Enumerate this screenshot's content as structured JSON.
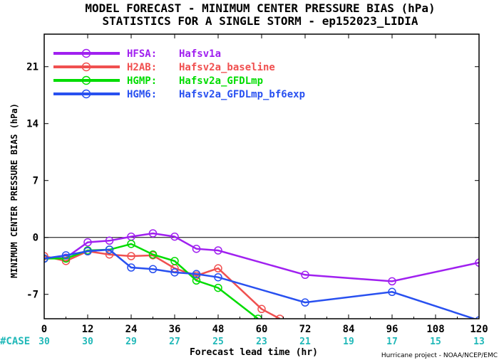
{
  "chart_data": {
    "type": "line",
    "title": "MODEL FORECAST - MINIMUM CENTER PRESSURE BIAS (hPa)",
    "subtitle": "STATISTICS FOR A SINGLE STORM - ep152023_LIDIA",
    "xlabel": "Forecast lead time (hr)",
    "ylabel": "MINIMUM CENTER PRESSURE BIAS (hPa)",
    "xlim": [
      0,
      120
    ],
    "ylim": [
      -10,
      25
    ],
    "xticks": [
      "0",
      "12",
      "24",
      "36",
      "48",
      "60",
      "72",
      "84",
      "96",
      "108",
      "120"
    ],
    "yticks": [
      "-7",
      "0",
      "7",
      "14",
      "21"
    ],
    "legend_position": "top-left",
    "case_label": "#CASE",
    "cases": [
      "30",
      "30",
      "29",
      "27",
      "25",
      "23",
      "21",
      "19",
      "17",
      "15",
      "13"
    ],
    "credit": "Hurricane project - NOAA/NCEP/EMC",
    "series": [
      {
        "name": "HFSA:",
        "desc": "Hafsv1a",
        "color": "#a020f0",
        "x": [
          0,
          6,
          12,
          18,
          24,
          30,
          36,
          42,
          48,
          72,
          96,
          120
        ],
        "y": [
          -2.6,
          -2.5,
          -0.6,
          -0.4,
          0.1,
          0.5,
          0.1,
          -1.4,
          -1.6,
          -4.6,
          -5.4,
          -3.1
        ]
      },
      {
        "name": "H2AB:",
        "desc": "Hafsv2a_baseline",
        "color": "#f05050",
        "x": [
          0,
          6,
          12,
          18,
          24,
          30,
          36,
          42,
          48,
          60,
          65
        ],
        "y": [
          -2.3,
          -2.9,
          -1.7,
          -2.1,
          -2.3,
          -2.2,
          -3.8,
          -4.7,
          -3.8,
          -8.8,
          -10
        ]
      },
      {
        "name": "HGMP:",
        "desc": "Hafsv2a_GFDLmp",
        "color": "#00dc00",
        "x": [
          0,
          6,
          12,
          18,
          24,
          30,
          36,
          42,
          48,
          59
        ],
        "y": [
          -2.6,
          -2.6,
          -1.6,
          -1.5,
          -0.8,
          -2.1,
          -2.9,
          -5.3,
          -6.2,
          -10
        ]
      },
      {
        "name": "HGM6:",
        "desc": "Hafsv2a_GFDLmp_bf6exp",
        "color": "#2850f0",
        "x": [
          0,
          6,
          12,
          18,
          24,
          30,
          36,
          42,
          48,
          72,
          96,
          120
        ],
        "y": [
          -2.6,
          -2.2,
          -1.7,
          -1.5,
          -3.7,
          -3.9,
          -4.3,
          -4.5,
          -4.9,
          -8.0,
          -6.7,
          -10.2
        ]
      }
    ]
  }
}
